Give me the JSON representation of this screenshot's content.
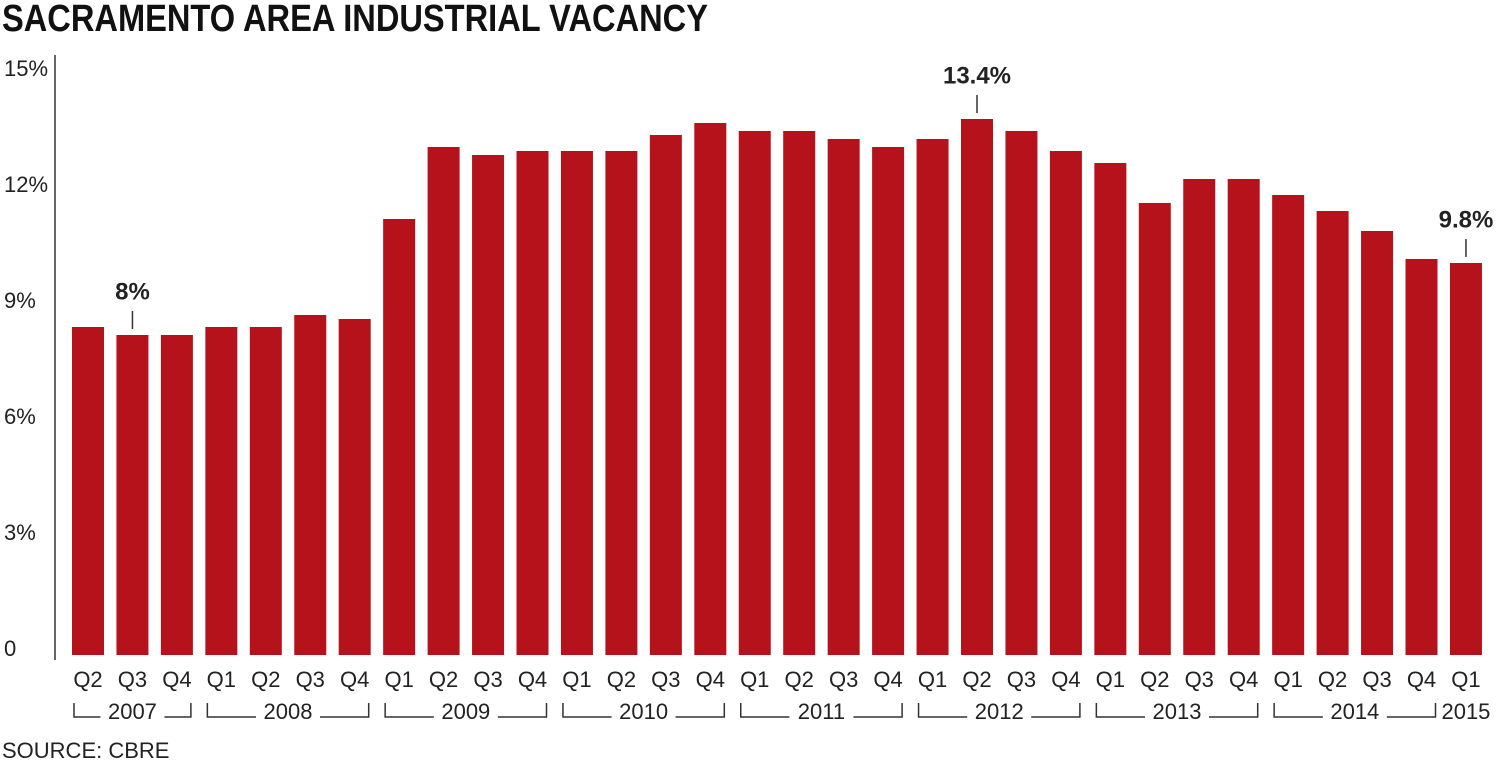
{
  "chart_data": {
    "type": "bar",
    "title": "SACRAMENTO AREA INDUSTRIAL VACANCY",
    "source": "SOURCE: CBRE",
    "color": "#b5121b",
    "categories": [
      "Q2",
      "Q3",
      "Q4",
      "Q1",
      "Q2",
      "Q3",
      "Q4",
      "Q1",
      "Q2",
      "Q3",
      "Q4",
      "Q1",
      "Q2",
      "Q3",
      "Q4",
      "Q1",
      "Q2",
      "Q3",
      "Q4",
      "Q1",
      "Q2",
      "Q3",
      "Q4",
      "Q1",
      "Q2",
      "Q3",
      "Q4",
      "Q1",
      "Q2",
      "Q3",
      "Q4",
      "Q1"
    ],
    "x_groups": [
      {
        "label": "2007",
        "size": 3
      },
      {
        "label": "2008",
        "size": 4
      },
      {
        "label": "2009",
        "size": 4
      },
      {
        "label": "2010",
        "size": 4
      },
      {
        "label": "2011",
        "size": 4
      },
      {
        "label": "2012",
        "size": 4
      },
      {
        "label": "2013",
        "size": 4
      },
      {
        "label": "2014",
        "size": 4
      },
      {
        "label": "2015",
        "size": 1
      }
    ],
    "values": [
      8.2,
      8.0,
      8.0,
      8.2,
      8.2,
      8.5,
      8.4,
      10.9,
      12.7,
      12.5,
      12.6,
      12.6,
      12.6,
      13.0,
      13.3,
      13.1,
      13.1,
      12.9,
      12.7,
      12.9,
      13.4,
      13.1,
      12.6,
      12.3,
      11.3,
      11.9,
      11.9,
      11.5,
      11.1,
      10.6,
      9.9,
      9.8
    ],
    "value_labels": [
      null,
      "8%",
      null,
      null,
      null,
      null,
      null,
      null,
      null,
      null,
      null,
      null,
      null,
      null,
      null,
      null,
      null,
      null,
      null,
      null,
      "13.4%",
      null,
      null,
      null,
      null,
      null,
      null,
      null,
      null,
      null,
      null,
      "9.8%"
    ],
    "ylim": [
      0,
      15
    ],
    "yticks": [
      0,
      {
        "value": 3,
        "label": "3%"
      },
      {
        "value": 6,
        "label": "6%"
      },
      {
        "value": 9,
        "label": "9%"
      },
      {
        "value": 12,
        "label": "12%"
      },
      {
        "value": 15,
        "label": "15%"
      }
    ]
  }
}
